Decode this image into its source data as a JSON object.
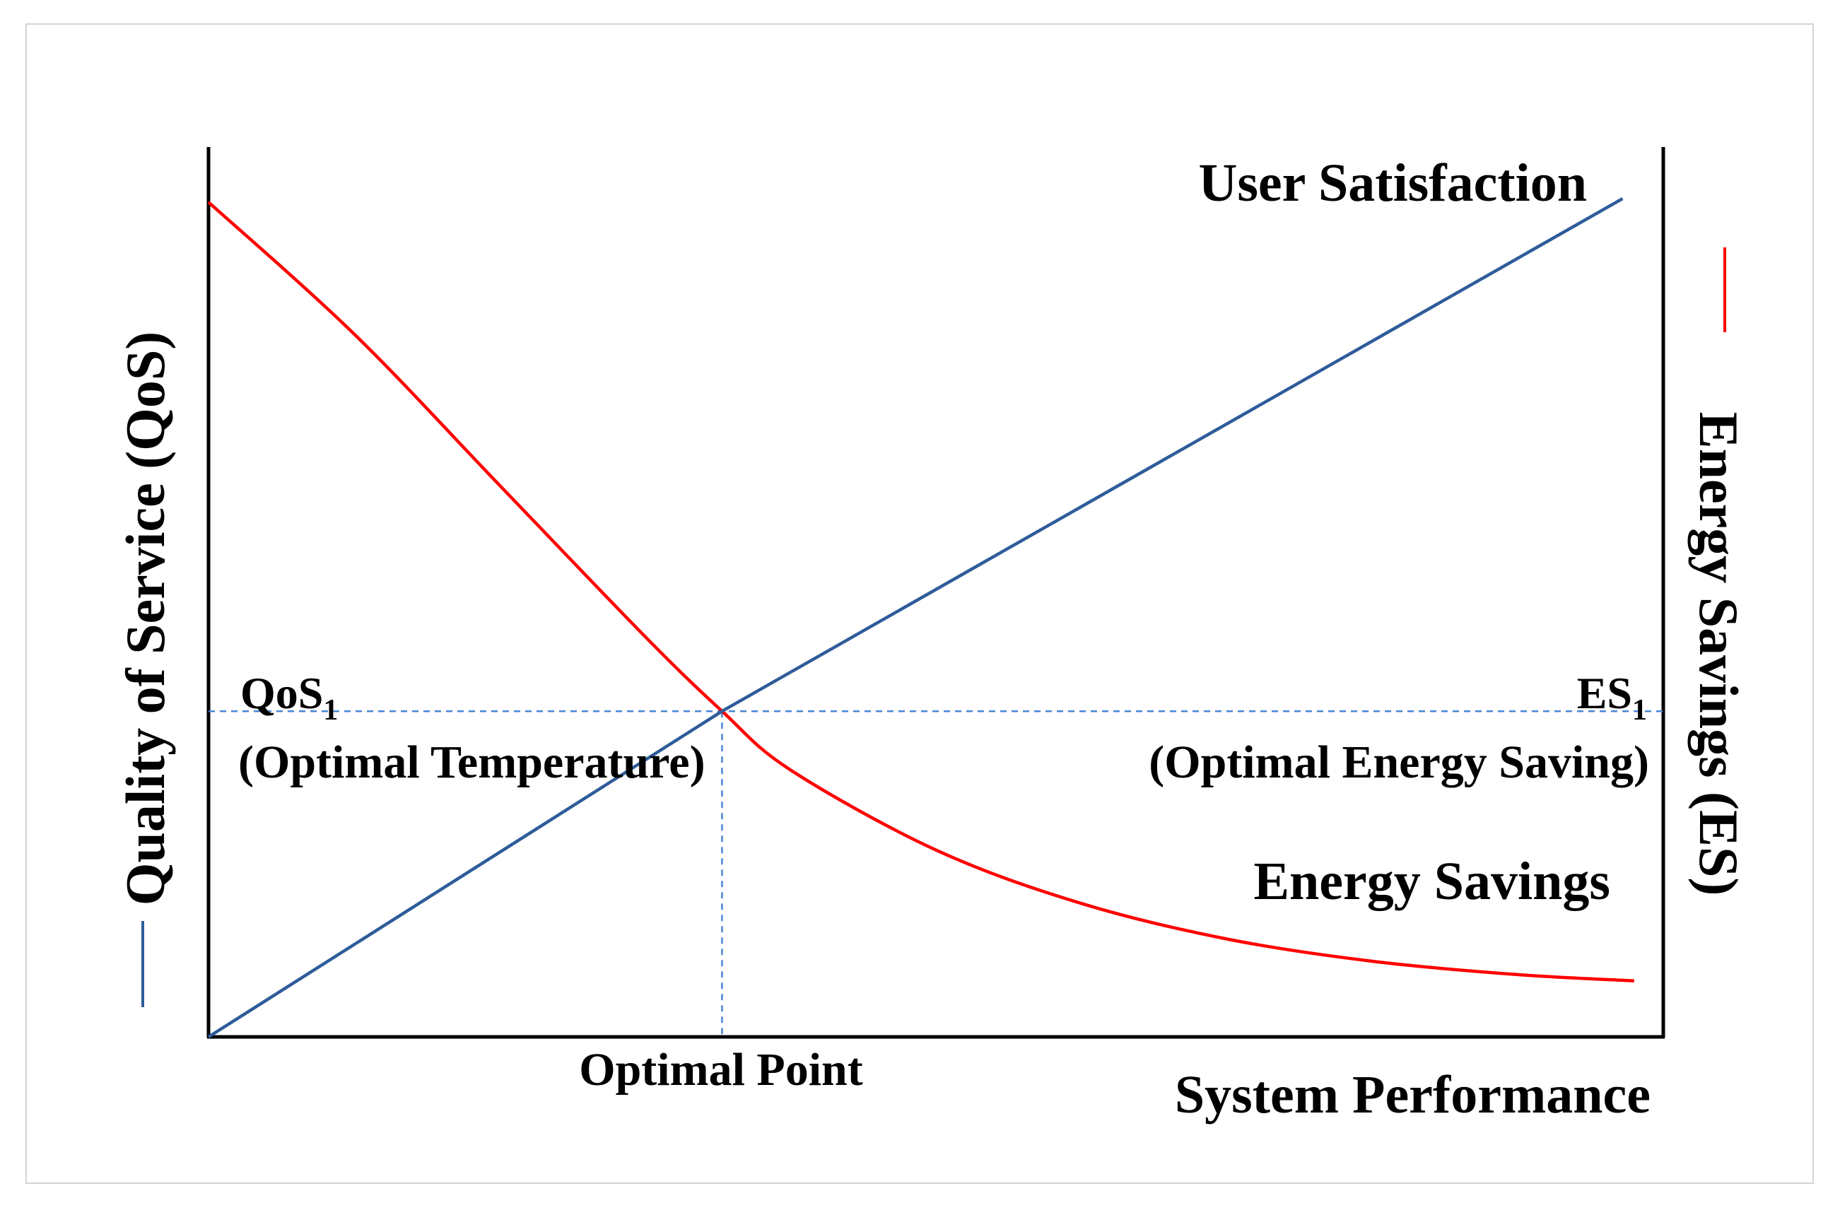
{
  "chart_data": {
    "type": "line",
    "title": "",
    "xlabel": "System Performance",
    "ylabel_left": "Quality of Service (QoS)",
    "ylabel_right": "Energy Savings (ES)",
    "x_tick_label": "Optimal Point",
    "xlim": [
      0,
      1
    ],
    "ylim": [
      0,
      1
    ],
    "optimal_point": {
      "x": 0.353,
      "y": 0.366
    },
    "series": [
      {
        "name": "User Satisfaction",
        "color": "#2e5c9a",
        "x": [
          0.0,
          0.353,
          0.972
        ],
        "y": [
          0.0,
          0.366,
          0.942
        ]
      },
      {
        "name": "Energy Savings",
        "color": "#ff0000",
        "x": [
          0.0,
          0.1,
          0.2,
          0.3,
          0.353,
          0.4,
          0.5,
          0.6,
          0.7,
          0.8,
          0.9,
          0.98
        ],
        "y": [
          0.938,
          0.79,
          0.62,
          0.45,
          0.366,
          0.3,
          0.21,
          0.15,
          0.11,
          0.085,
          0.07,
          0.063
        ]
      }
    ],
    "annotations": {
      "qos1_main": "QoS",
      "qos1_sub": "1",
      "qos1_desc": "(Optimal Temperature)",
      "es1_main": "ES",
      "es1_sub": "1",
      "es1_desc": "(Optimal Energy Saving)"
    },
    "legend_colors": {
      "qos": "#2e5c9a",
      "es": "#ff0000"
    },
    "reference_line_color": "#4a86d8"
  }
}
